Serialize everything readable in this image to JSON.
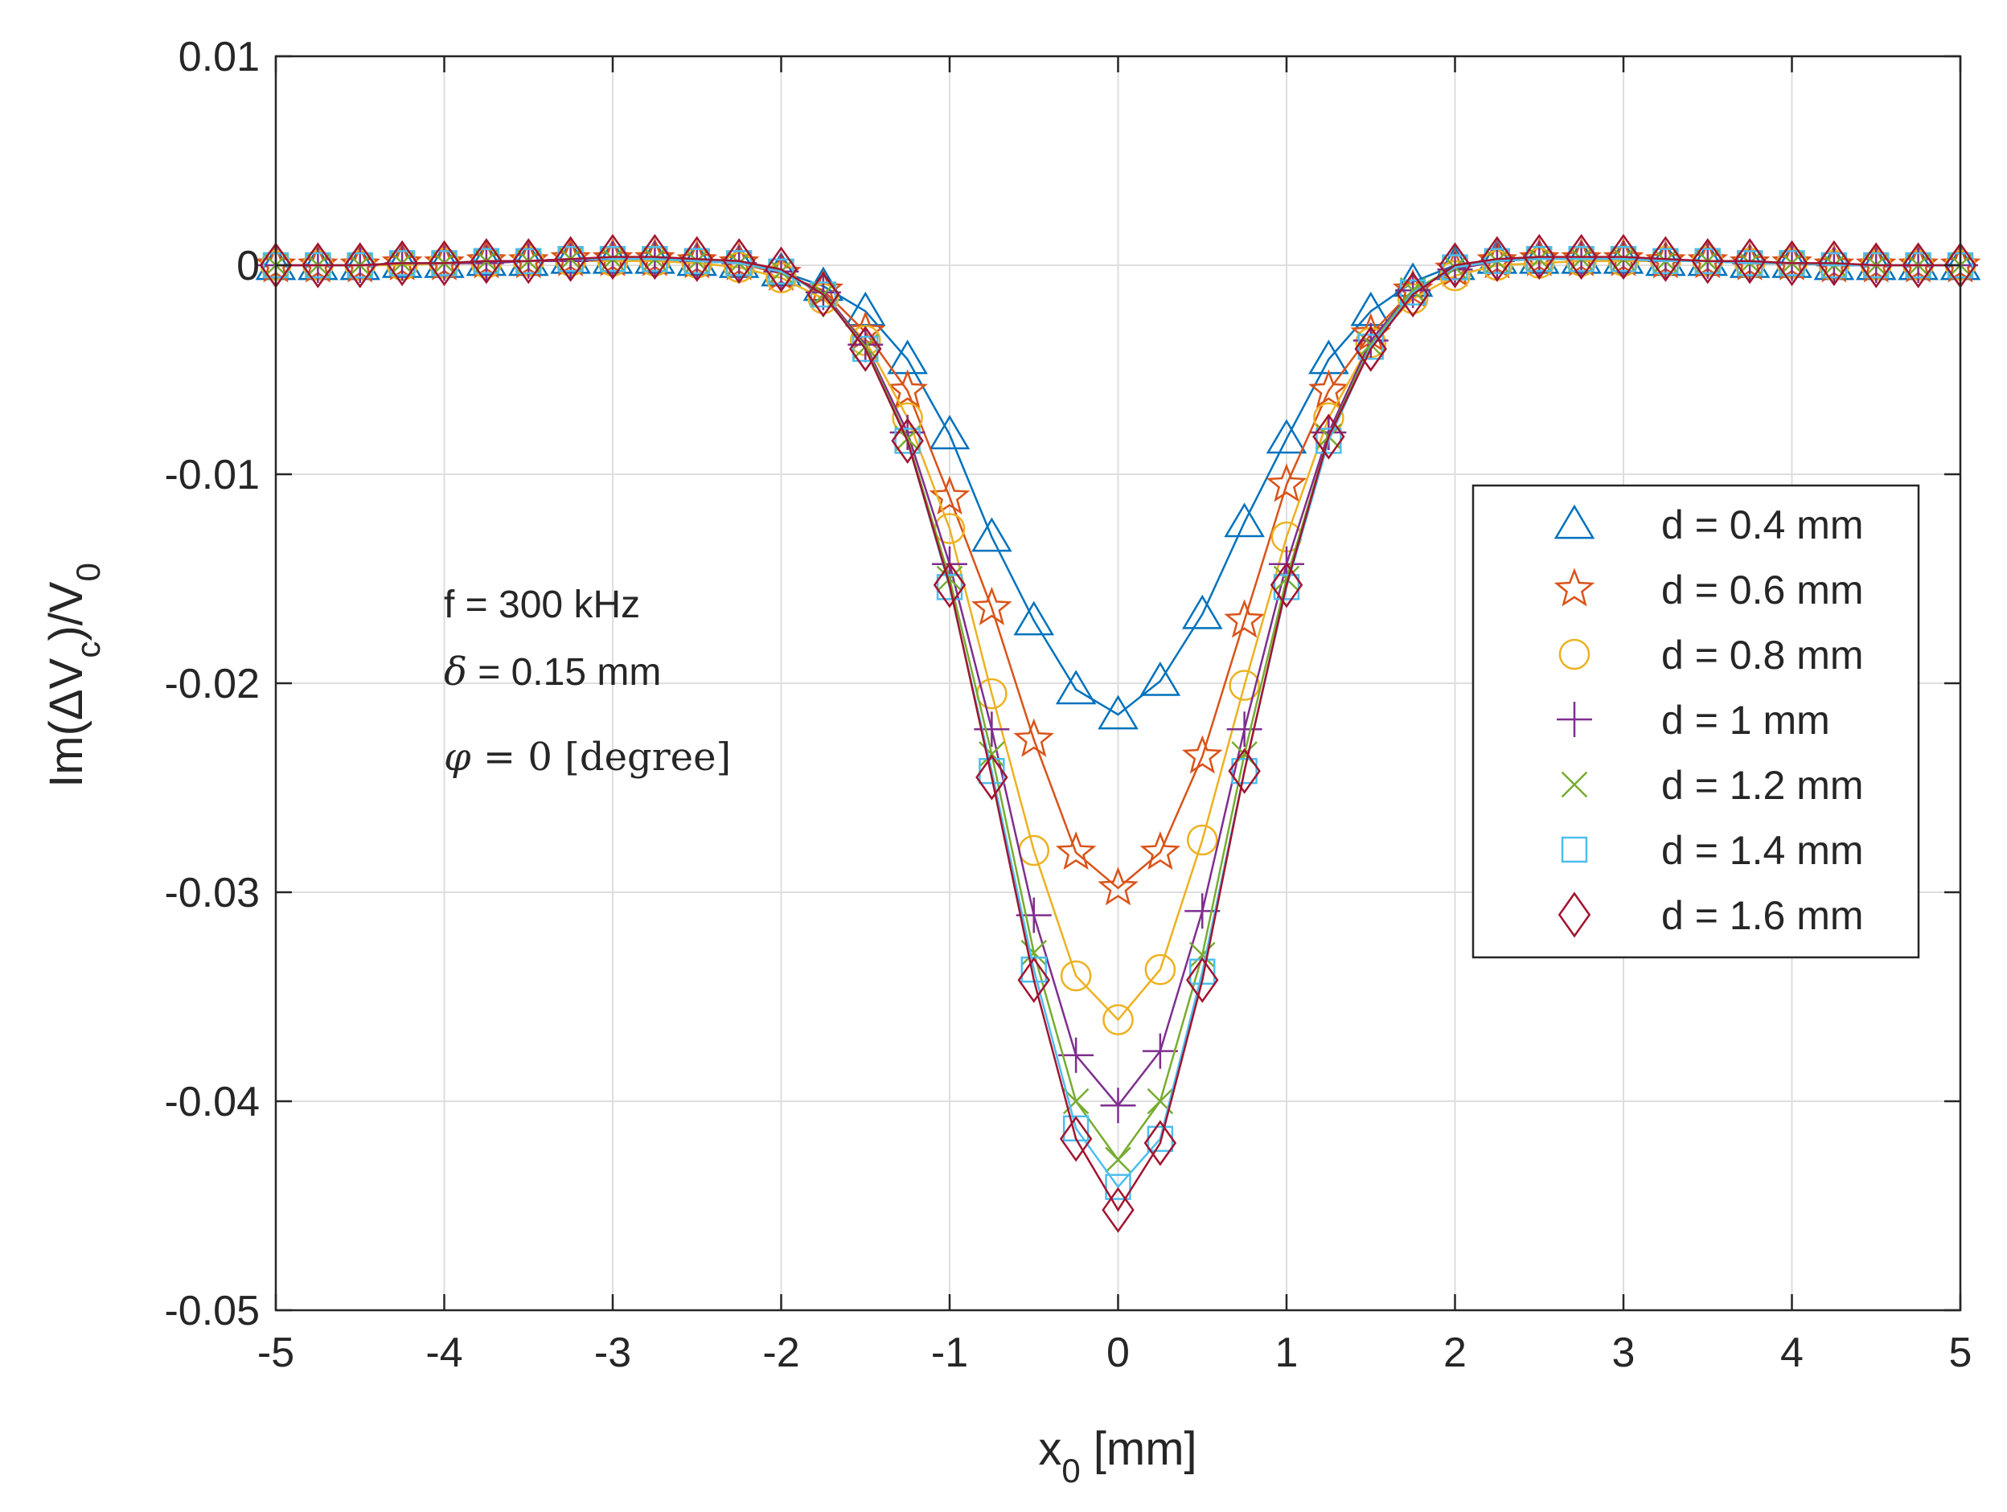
{
  "chart_data": {
    "type": "line",
    "xlabel": "x",
    "xlabel_sub": "0",
    "xlabel_unit": " [mm]",
    "ylabel_parts": {
      "pre": "Im(ΔV",
      "sub1": "c",
      "mid": ")/V",
      "sub2": "0"
    },
    "xlim": [
      -5,
      5
    ],
    "ylim": [
      -0.05,
      0.01
    ],
    "xticks": [
      -5,
      -4,
      -3,
      -2,
      -1,
      0,
      1,
      2,
      3,
      4,
      5
    ],
    "xtick_labels": [
      "-5",
      "-4",
      "-3",
      "-2",
      "-1",
      "0",
      "1",
      "2",
      "3",
      "4",
      "5"
    ],
    "yticks": [
      0.01,
      0,
      -0.01,
      -0.02,
      -0.03,
      -0.04,
      -0.05
    ],
    "ytick_labels": [
      "0.01",
      "0",
      "-0.01",
      "-0.02",
      "-0.03",
      "-0.04",
      "-0.05"
    ],
    "grid": true,
    "legend_position": "right",
    "annotations": {
      "line1": "f = 300 kHz",
      "line2_sym": "δ",
      "line2_rest": " = 0.15 mm",
      "line3_sym": "φ",
      "line3_eq": " = 0 ",
      "line3_unit": "[degree]"
    },
    "x": [
      -5,
      -4.75,
      -4.5,
      -4.25,
      -4,
      -3.75,
      -3.5,
      -3.25,
      -3,
      -2.75,
      -2.5,
      -2.25,
      -2,
      -1.75,
      -1.5,
      -1.25,
      -1,
      -0.75,
      -0.5,
      -0.25,
      0,
      0.25,
      0.5,
      0.75,
      1,
      1.25,
      1.5,
      1.75,
      2,
      2.25,
      2.5,
      2.75,
      3,
      3.25,
      3.5,
      3.75,
      4,
      4.25,
      4.5,
      4.75,
      5
    ],
    "series": [
      {
        "name": "d = 0.4 mm",
        "color": "#0072BD",
        "marker": "triangle",
        "values": [
          0,
          0,
          0,
          0.0001,
          0.0001,
          0.0002,
          0.0002,
          0.0003,
          0.0003,
          0.0003,
          0.0002,
          0.0001,
          -0.0003,
          -0.001,
          -0.0022,
          -0.0045,
          -0.0081,
          -0.013,
          -0.017,
          -0.0203,
          -0.0215,
          -0.0199,
          -0.0167,
          -0.0123,
          -0.0083,
          -0.0045,
          -0.0022,
          -0.0008,
          0,
          0.0003,
          0.0003,
          0.0003,
          0.0003,
          0.0002,
          0.0002,
          0.0001,
          0.0001,
          0,
          0,
          0,
          0
        ]
      },
      {
        "name": "d = 0.6 mm",
        "color": "#D95319",
        "marker": "star",
        "values": [
          0,
          0,
          0,
          0.0001,
          0.0001,
          0.0002,
          0.0002,
          0.0003,
          0.0003,
          0.0003,
          0.0002,
          0.0001,
          -0.0004,
          -0.0012,
          -0.0032,
          -0.006,
          -0.0111,
          -0.0164,
          -0.0227,
          -0.0281,
          -0.0298,
          -0.0281,
          -0.0235,
          -0.017,
          -0.0105,
          -0.006,
          -0.0033,
          -0.0012,
          -0.0002,
          0.0002,
          0.0003,
          0.0003,
          0.0003,
          0.0002,
          0.0002,
          0.0001,
          0.0001,
          0,
          0,
          0,
          0
        ]
      },
      {
        "name": "d = 0.8 mm",
        "color": "#EDB120",
        "marker": "circle",
        "values": [
          0,
          0,
          0,
          0,
          0.0001,
          0.0001,
          0.0002,
          0.0002,
          0.0002,
          0.0002,
          0.0001,
          -0.0001,
          -0.0006,
          -0.0016,
          -0.0036,
          -0.0073,
          -0.0126,
          -0.0205,
          -0.028,
          -0.034,
          -0.0361,
          -0.0337,
          -0.0275,
          -0.0201,
          -0.013,
          -0.0073,
          -0.0037,
          -0.0016,
          -0.0005,
          0,
          0.0001,
          0.0002,
          0.0002,
          0.0002,
          0.0002,
          0.0001,
          0.0001,
          0,
          0,
          0,
          0
        ]
      },
      {
        "name": "d = 1 mm",
        "color": "#7E2F8E",
        "marker": "plus",
        "values": [
          0,
          0,
          0,
          0.0001,
          0.0001,
          0.0001,
          0.0002,
          0.0002,
          0.0003,
          0.0003,
          0.0002,
          0.0001,
          -0.0003,
          -0.0013,
          -0.0038,
          -0.008,
          -0.0143,
          -0.0222,
          -0.0311,
          -0.0378,
          -0.0402,
          -0.0376,
          -0.0309,
          -0.0222,
          -0.0143,
          -0.008,
          -0.0036,
          -0.0012,
          -0.0002,
          0.0002,
          0.0003,
          0.0003,
          0.0003,
          0.0002,
          0.0002,
          0.0001,
          0.0001,
          0,
          0,
          0,
          0
        ]
      },
      {
        "name": "d = 1.2 mm",
        "color": "#77AC30",
        "marker": "x",
        "values": [
          0,
          0,
          0,
          0.0001,
          0.0001,
          0.0002,
          0.0002,
          0.0003,
          0.0003,
          0.0003,
          0.0002,
          0.0001,
          -0.0003,
          -0.0014,
          -0.0039,
          -0.0083,
          -0.015,
          -0.0234,
          -0.0329,
          -0.04,
          -0.0428,
          -0.04,
          -0.033,
          -0.0234,
          -0.015,
          -0.0082,
          -0.0038,
          -0.0012,
          -0.0001,
          0.0002,
          0.0003,
          0.0003,
          0.0003,
          0.0002,
          0.0002,
          0.0001,
          0.0001,
          0,
          0,
          0,
          0
        ]
      },
      {
        "name": "d = 1.4 mm",
        "color": "#4DBEEE",
        "marker": "square",
        "values": [
          0,
          0,
          0,
          0.0001,
          0.0001,
          0.0002,
          0.0002,
          0.0003,
          0.0003,
          0.0003,
          0.0002,
          0.0001,
          -0.0003,
          -0.0014,
          -0.004,
          -0.0084,
          -0.0154,
          -0.0242,
          -0.0337,
          -0.0413,
          -0.0441,
          -0.0418,
          -0.0338,
          -0.0242,
          -0.0154,
          -0.0084,
          -0.0039,
          -0.0013,
          -0.0001,
          0.0002,
          0.0003,
          0.0003,
          0.0003,
          0.0002,
          0.0002,
          0.0001,
          0.0001,
          0,
          0,
          0,
          0
        ]
      },
      {
        "name": "d = 1.6 mm",
        "color": "#A2142F",
        "marker": "diamond",
        "values": [
          0,
          0,
          0,
          0.0001,
          0.0001,
          0.0002,
          0.0002,
          0.0003,
          0.0004,
          0.0004,
          0.0003,
          0.0002,
          -0.0002,
          -0.0014,
          -0.004,
          -0.0084,
          -0.0153,
          -0.0245,
          -0.0342,
          -0.0418,
          -0.0452,
          -0.042,
          -0.0342,
          -0.0242,
          -0.0153,
          -0.0082,
          -0.004,
          -0.0014,
          0,
          0.0003,
          0.0004,
          0.0004,
          0.0004,
          0.0003,
          0.0002,
          0.0002,
          0.0001,
          0.0001,
          0,
          0,
          0
        ]
      }
    ]
  }
}
